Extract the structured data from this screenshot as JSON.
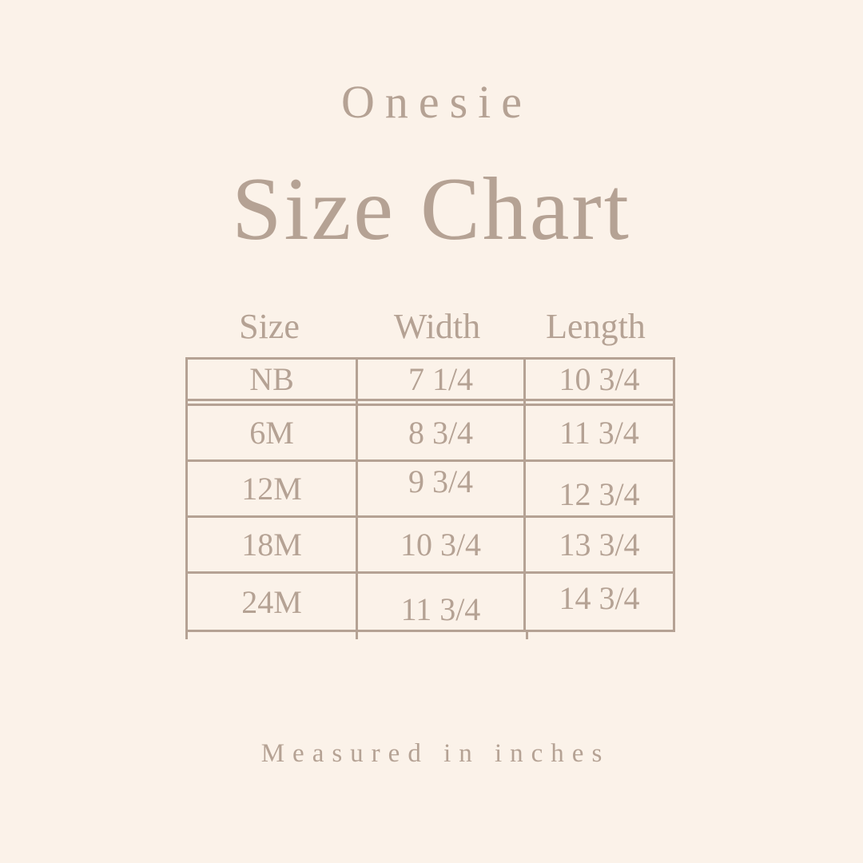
{
  "page": {
    "background_color": "#fbf2e9",
    "accent_color": "#b5a294"
  },
  "title": {
    "eyebrow": "Onesie",
    "main": "Size Chart"
  },
  "table": {
    "headers": [
      "Size",
      "Width",
      "Length"
    ],
    "rows": [
      [
        "NB",
        "7 1/4",
        "10 3/4"
      ],
      [
        "6M",
        "8 3/4",
        "11 3/4"
      ],
      [
        "12M",
        "9 3/4",
        "12 3/4"
      ],
      [
        "18M",
        "10 3/4",
        "13 3/4"
      ],
      [
        "24M",
        "11 3/4",
        "14 3/4"
      ]
    ]
  },
  "footer": {
    "note": "Measured in inches"
  },
  "chart_data": {
    "type": "table",
    "title": "Onesie Size Chart",
    "columns": [
      "Size",
      "Width",
      "Length"
    ],
    "rows": [
      {
        "size": "NB",
        "width": "7 1/4",
        "length": "10 3/4"
      },
      {
        "size": "6M",
        "width": "8 3/4",
        "length": "11 3/4"
      },
      {
        "size": "12M",
        "width": "9 3/4",
        "length": "12 3/4"
      },
      {
        "size": "18M",
        "width": "10 3/4",
        "length": "13 3/4"
      },
      {
        "size": "24M",
        "width": "11 3/4",
        "length": "14 3/4"
      }
    ],
    "note": "Measured in inches"
  }
}
